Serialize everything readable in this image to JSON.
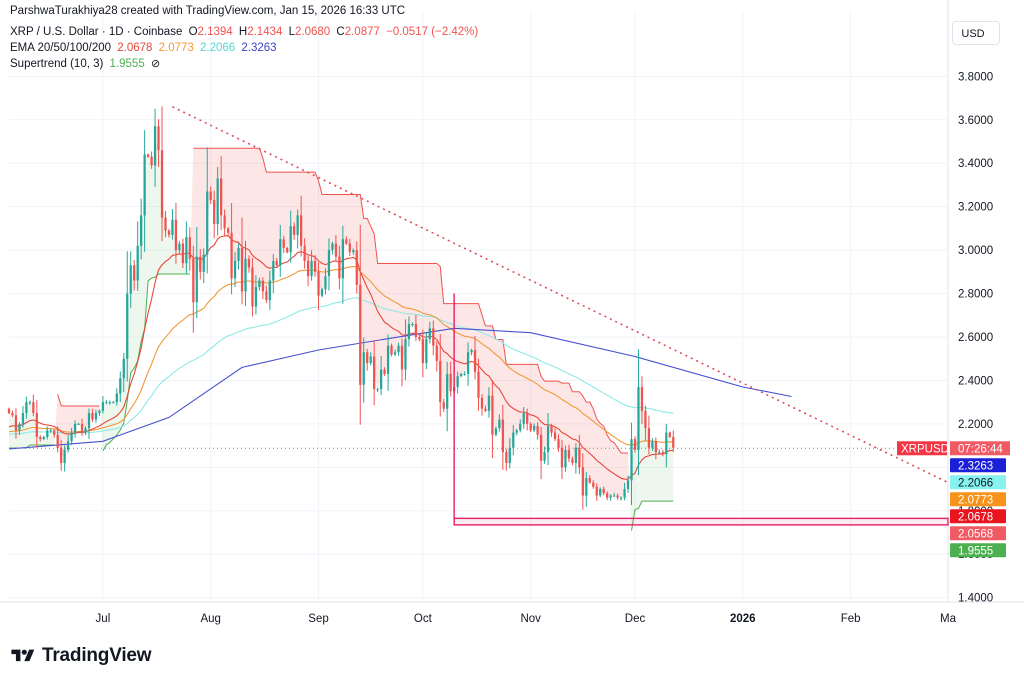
{
  "header": {
    "credit": "ParshwaTurakhiya28 created with TradingView.com, Jan 15, 2026 16:33 UTC",
    "symbol": "XRP / U.S. Dollar · 1D · Coinbase",
    "ohlc": {
      "o_label": "O",
      "o": "2.1394",
      "h_label": "H",
      "h": "2.1434",
      "l_label": "L",
      "l": "2.0680",
      "c_label": "C",
      "c": "2.0877",
      "change": "−0.0517 (−2.42%)"
    },
    "ema": {
      "label": "EMA 20/50/100/200",
      "v20": "2.0678",
      "v50": "2.0773",
      "v100": "2.2066",
      "v200": "2.3263"
    },
    "supertrend": {
      "label": "Supertrend (10, 3)",
      "value": "1.9555",
      "icon": "visibility-off-icon"
    }
  },
  "currency_button": "USD",
  "logo_text": "TradingView",
  "colors": {
    "up": "#26a69a",
    "down": "#ef5350",
    "ema20": "#e8473b",
    "ema50": "#f0993a",
    "ema100": "#8ee9e6",
    "ema200": "#4650d0",
    "supertrend_up": "#4caf50",
    "supertrend_down": "#ef5350",
    "trendline": "#e04d5c",
    "box": "#e91e63",
    "price_line": "#ef5350"
  },
  "chart_data": {
    "type": "candlestick",
    "y_axis": {
      "ticks": [
        1.4,
        1.6,
        1.8,
        2.0,
        2.2,
        2.4,
        2.6,
        2.8,
        3.0,
        3.2,
        3.4,
        3.6,
        3.8
      ],
      "tick_labels": [
        "1.4000",
        "1.6000",
        "1.8000",
        "2.0000",
        "2.2000",
        "2.4000",
        "2.6000",
        "2.8000",
        "3.0000",
        "3.2000",
        "3.4000",
        "3.6000",
        "3.8000"
      ],
      "range": [
        1.38,
        3.82
      ]
    },
    "x_axis": {
      "range": [
        "2025-06-04",
        "2026-03-01"
      ],
      "ticks": [
        {
          "date": "2025-07-01",
          "label": "Jul",
          "bold": false
        },
        {
          "date": "2025-08-01",
          "label": "Aug",
          "bold": false
        },
        {
          "date": "2025-09-01",
          "label": "Sep",
          "bold": false
        },
        {
          "date": "2025-10-01",
          "label": "Oct",
          "bold": false
        },
        {
          "date": "2025-11-01",
          "label": "Nov",
          "bold": false
        },
        {
          "date": "2025-12-01",
          "label": "Dec",
          "bold": false
        },
        {
          "date": "2026-01-01",
          "label": "2026",
          "bold": true
        },
        {
          "date": "2026-02-01",
          "label": "Feb",
          "bold": false
        },
        {
          "date": "2026-03-01",
          "label": "Ma",
          "bold": false
        }
      ]
    },
    "start_date": "2025-06-04",
    "closes": [
      2.25,
      2.24,
      2.17,
      2.2,
      2.25,
      2.3,
      2.3,
      2.25,
      2.14,
      2.13,
      2.14,
      2.17,
      2.17,
      2.15,
      2.09,
      2.02,
      2.08,
      2.12,
      2.16,
      2.2,
      2.2,
      2.16,
      2.18,
      2.25,
      2.22,
      2.25,
      2.26,
      2.3,
      2.3,
      2.3,
      2.3,
      2.34,
      2.41,
      2.5,
      2.8,
      2.93,
      2.86,
      3.02,
      3.16,
      3.44,
      3.43,
      3.39,
      3.57,
      3.46,
      3.15,
      3.09,
      3.07,
      3.14,
      3.0,
      3.03,
      2.94,
      3.06,
      2.96,
      2.76,
      2.97,
      2.9,
      2.98,
      3.27,
      3.23,
      3.12,
      3.33,
      3.16,
      3.1,
      3.08,
      2.87,
      2.95,
      3.01,
      2.81,
      2.96,
      2.92,
      2.74,
      2.83,
      2.86,
      2.81,
      2.77,
      2.86,
      2.95,
      2.93,
      3.05,
      3.01,
      2.99,
      3.11,
      3.07,
      3.16,
      3.02,
      2.95,
      2.88,
      2.95,
      2.9,
      2.79,
      2.82,
      2.88,
      3.0,
      3.03,
      2.97,
      2.87,
      3.05,
      3.03,
      2.99,
      3.0,
      2.84,
      2.38,
      2.53,
      2.48,
      2.51,
      2.36,
      2.36,
      2.45,
      2.43,
      2.56,
      2.52,
      2.53,
      2.56,
      2.45,
      2.59,
      2.66,
      2.66,
      2.6,
      2.59,
      2.48,
      2.59,
      2.64,
      2.56,
      2.49,
      2.3,
      2.27,
      2.43,
      2.35,
      2.37,
      2.42,
      2.43,
      2.43,
      2.53,
      2.54,
      2.44,
      2.32,
      2.27,
      2.26,
      2.33,
      2.15,
      2.18,
      2.22,
      2.07,
      2.02,
      2.09,
      2.16,
      2.17,
      2.2,
      2.25,
      2.2,
      2.17,
      2.19,
      2.15,
      2.03,
      2.07,
      2.19,
      2.16,
      2.13,
      2.09,
      2.0,
      2.08,
      2.04,
      2.02,
      2.09,
      2.0,
      1.87,
      1.95,
      1.93,
      1.91,
      1.87,
      1.9,
      1.88,
      1.86,
      1.87,
      1.87,
      1.86,
      1.86,
      1.9,
      1.94,
      2.13,
      2.08,
      2.37,
      2.26,
      2.18,
      2.09,
      2.12,
      2.07,
      2.07,
      2.06,
      2.16,
      2.14,
      2.09
    ],
    "series": [
      {
        "name": "EMA 20",
        "last": 2.0678
      },
      {
        "name": "EMA 50",
        "last": 2.0773
      },
      {
        "name": "EMA 100",
        "last": 2.2066
      },
      {
        "name": "EMA 200",
        "last": 2.3263
      },
      {
        "name": "Supertrend",
        "last": 1.9555
      }
    ],
    "ema200_path": [
      {
        "d": "2025-06-04",
        "v": 2.085
      },
      {
        "d": "2025-07-01",
        "v": 2.12
      },
      {
        "d": "2025-07-20",
        "v": 2.23
      },
      {
        "d": "2025-08-10",
        "v": 2.46
      },
      {
        "d": "2025-09-01",
        "v": 2.54
      },
      {
        "d": "2025-09-20",
        "v": 2.59
      },
      {
        "d": "2025-10-10",
        "v": 2.64
      },
      {
        "d": "2025-11-01",
        "v": 2.62
      },
      {
        "d": "2025-12-01",
        "v": 2.51
      },
      {
        "d": "2026-01-01",
        "v": 2.37
      },
      {
        "d": "2026-01-15",
        "v": 2.3263
      }
    ],
    "trendline": {
      "from": {
        "d": "2025-07-21",
        "v": 3.66
      },
      "to": {
        "d": "2026-03-01",
        "v": 1.93
      }
    },
    "support_box": {
      "from": "2025-10-10",
      "to": "2026-03-01",
      "top": 1.765,
      "bottom": 1.735
    },
    "current_price": 2.0877,
    "countdown": "07:26:44",
    "symbol_label": "XRPUSD",
    "price_labels": [
      {
        "text": "2.3263",
        "value": 2.3263,
        "bg": "#1a1fd8",
        "fg": "#ffffff"
      },
      {
        "text": "2.2066",
        "value": 2.2066,
        "bg": "#86f3f0",
        "fg": "#131722"
      },
      {
        "text": "2.0773",
        "value": 2.0773,
        "bg": "#f7931a",
        "fg": "#ffffff"
      },
      {
        "text": "2.0678",
        "value": 2.0678,
        "bg": "#e8141e",
        "fg": "#ffffff"
      },
      {
        "text": "2.0568",
        "value": 2.0568,
        "bg": "#f05a64",
        "fg": "#ffffff"
      },
      {
        "text": "1.9555",
        "value": 1.9555,
        "bg": "#4caf50",
        "fg": "#ffffff"
      }
    ]
  }
}
